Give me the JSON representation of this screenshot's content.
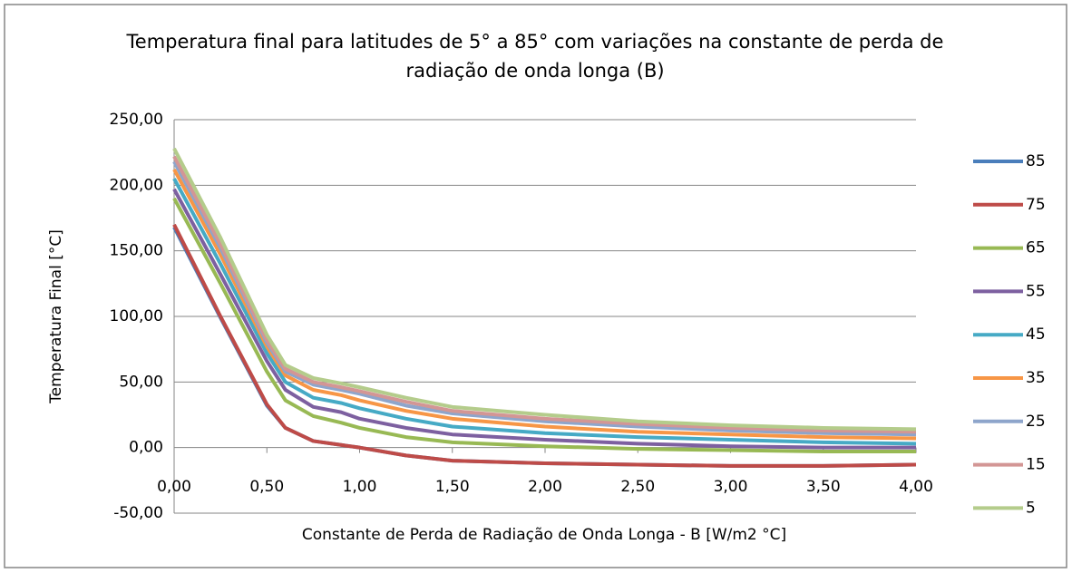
{
  "chart_data": {
    "type": "line",
    "title": "Temperatura final para latitudes de 5° a 85° com variações na constante de perda de radiação de onda longa (B)",
    "x_label": "Constante de Perda de Radiação de Onda Longa - B [W/m2 °C]",
    "y_label": "Temperatura Final [°C]",
    "x": [
      0,
      0.25,
      0.5,
      0.6,
      0.75,
      0.9,
      1.0,
      1.25,
      1.5,
      2,
      2.5,
      3,
      3.5,
      4
    ],
    "series": [
      {
        "name": "85",
        "color": "#4a7ebb",
        "values": [
          168,
          99,
          32,
          15,
          5,
          2,
          0,
          -6,
          -10,
          -12,
          -13,
          -14,
          -14,
          -13
        ]
      },
      {
        "name": "75",
        "color": "#be4b48",
        "values": [
          170,
          100,
          33,
          15,
          5,
          2,
          0,
          -6,
          -10,
          -12,
          -13,
          -14,
          -14,
          -13
        ]
      },
      {
        "name": "65",
        "color": "#98b954",
        "values": [
          190,
          125,
          58,
          36,
          24,
          19,
          15,
          8,
          4,
          1,
          -1,
          -2,
          -3,
          -3
        ]
      },
      {
        "name": "55",
        "color": "#7d60a0",
        "values": [
          197,
          132,
          66,
          44,
          31,
          27,
          22,
          15,
          10,
          6,
          3,
          1,
          0,
          0
        ]
      },
      {
        "name": "45",
        "color": "#46aac5",
        "values": [
          205,
          140,
          72,
          50,
          38,
          34,
          30,
          22,
          16,
          11,
          8,
          6,
          4,
          3
        ]
      },
      {
        "name": "35",
        "color": "#f79646",
        "values": [
          212,
          147,
          77,
          55,
          44,
          40,
          36,
          28,
          22,
          16,
          12,
          10,
          8,
          7
        ]
      },
      {
        "name": "25",
        "color": "#8ea5cb",
        "values": [
          218,
          152,
          80,
          58,
          48,
          44,
          41,
          32,
          26,
          20,
          16,
          13,
          11,
          10
        ]
      },
      {
        "name": "15",
        "color": "#d39695",
        "values": [
          222,
          155,
          82,
          60,
          50,
          46,
          43,
          35,
          28,
          22,
          18,
          15,
          13,
          12
        ]
      },
      {
        "name": "5",
        "color": "#b4cc8b",
        "values": [
          228,
          160,
          86,
          63,
          53,
          49,
          46,
          38,
          31,
          25,
          20,
          17,
          15,
          14
        ]
      }
    ],
    "xlim": [
      0,
      4
    ],
    "xticks": [
      {
        "value": 0,
        "label": "0,00"
      },
      {
        "value": 0.5,
        "label": "0,50"
      },
      {
        "value": 1,
        "label": "1,00"
      },
      {
        "value": 1.5,
        "label": "1,50"
      },
      {
        "value": 2,
        "label": "2,00"
      },
      {
        "value": 2.5,
        "label": "2,50"
      },
      {
        "value": 3,
        "label": "3,00"
      },
      {
        "value": 3.5,
        "label": "3,50"
      },
      {
        "value": 4,
        "label": "4,00"
      }
    ],
    "ylim": [
      -50,
      250
    ],
    "yticks": [
      {
        "value": -50,
        "label": "-50,00"
      },
      {
        "value": 0,
        "label": "0,00"
      },
      {
        "value": 50,
        "label": "50,00"
      },
      {
        "value": 100,
        "label": "100,00"
      },
      {
        "value": 150,
        "label": "150,00"
      },
      {
        "value": 200,
        "label": "200,00"
      },
      {
        "value": 250,
        "label": "250,00"
      }
    ],
    "grid": true,
    "legend": "right"
  }
}
